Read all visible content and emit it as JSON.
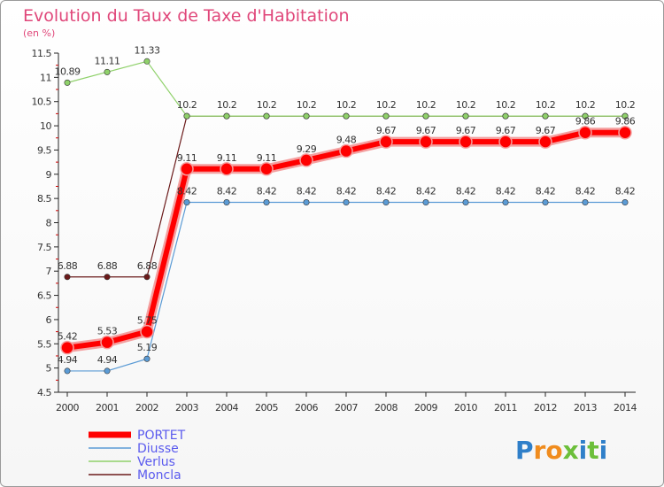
{
  "chart_data": {
    "type": "line",
    "title": "Evolution du Taux de Taxe d'Habitation",
    "subtitle": "(en %)",
    "x": [
      "2000",
      "2001",
      "2002",
      "2003",
      "2004",
      "2005",
      "2006",
      "2007",
      "2008",
      "2009",
      "2010",
      "2011",
      "2012",
      "2013",
      "2014"
    ],
    "yticks": [
      "4.5",
      "5",
      "5.5",
      "6",
      "6.5",
      "7",
      "7.5",
      "8",
      "8.5",
      "9",
      "9.5",
      "10",
      "10.5",
      "11",
      "11.5"
    ],
    "ylim": [
      4.5,
      11.5
    ],
    "grid": false,
    "legend_position": "bottom-left",
    "series": [
      {
        "name": "PORTET",
        "color": "#ff0000",
        "values": [
          5.42,
          5.53,
          5.75,
          9.11,
          9.11,
          9.11,
          9.29,
          9.48,
          9.67,
          9.67,
          9.67,
          9.67,
          9.67,
          9.86,
          9.86
        ],
        "labels": [
          "5.42",
          "5.53",
          "5.75",
          "9.11",
          "9.11",
          "9.11",
          "9.29",
          "9.48",
          "9.67",
          "9.67",
          "9.67",
          "9.67",
          "9.67",
          "9.86",
          "9.86"
        ]
      },
      {
        "name": "Diusse",
        "color": "#5b9bd5",
        "values": [
          4.94,
          4.94,
          5.19,
          8.42,
          8.42,
          8.42,
          8.42,
          8.42,
          8.42,
          8.42,
          8.42,
          8.42,
          8.42,
          8.42,
          8.42
        ],
        "labels": [
          "4.94",
          "4.94",
          "5.19",
          "8.42",
          "8.42",
          "8.42",
          "8.42",
          "8.42",
          "8.42",
          "8.42",
          "8.42",
          "8.42",
          "8.42",
          "8.42",
          "8.42"
        ]
      },
      {
        "name": "Verlus",
        "color": "#8fd16a",
        "values": [
          10.89,
          11.11,
          11.33,
          10.2,
          10.2,
          10.2,
          10.2,
          10.2,
          10.2,
          10.2,
          10.2,
          10.2,
          10.2,
          10.2,
          10.2
        ],
        "labels": [
          "10.89",
          "11.11",
          "11.33",
          "",
          "",
          "",
          "",
          "",
          "",
          "",
          "",
          "",
          "",
          "",
          ""
        ]
      },
      {
        "name": "Moncla",
        "color": "#6b1a1a",
        "values": [
          6.88,
          6.88,
          6.88,
          10.2,
          10.2,
          10.2,
          10.2,
          10.2,
          10.2,
          10.2,
          10.2,
          10.2,
          10.2,
          10.2,
          10.2
        ],
        "labels": [
          "6.88",
          "6.88",
          "6.88",
          "10.2",
          "10.2",
          "10.2",
          "10.2",
          "10.2",
          "10.2",
          "10.2",
          "10.2",
          "10.2",
          "10.2",
          "10.2",
          "10.2"
        ]
      }
    ]
  },
  "logo": {
    "letters": [
      "P",
      "r",
      "o",
      "x",
      "i",
      "t",
      "i"
    ],
    "colors": [
      "#2f7fc9",
      "#f08c1e",
      "#f08c1e",
      "#6cbf3a",
      "#2f7fc9",
      "#6cbf3a",
      "#2f7fc9"
    ]
  }
}
